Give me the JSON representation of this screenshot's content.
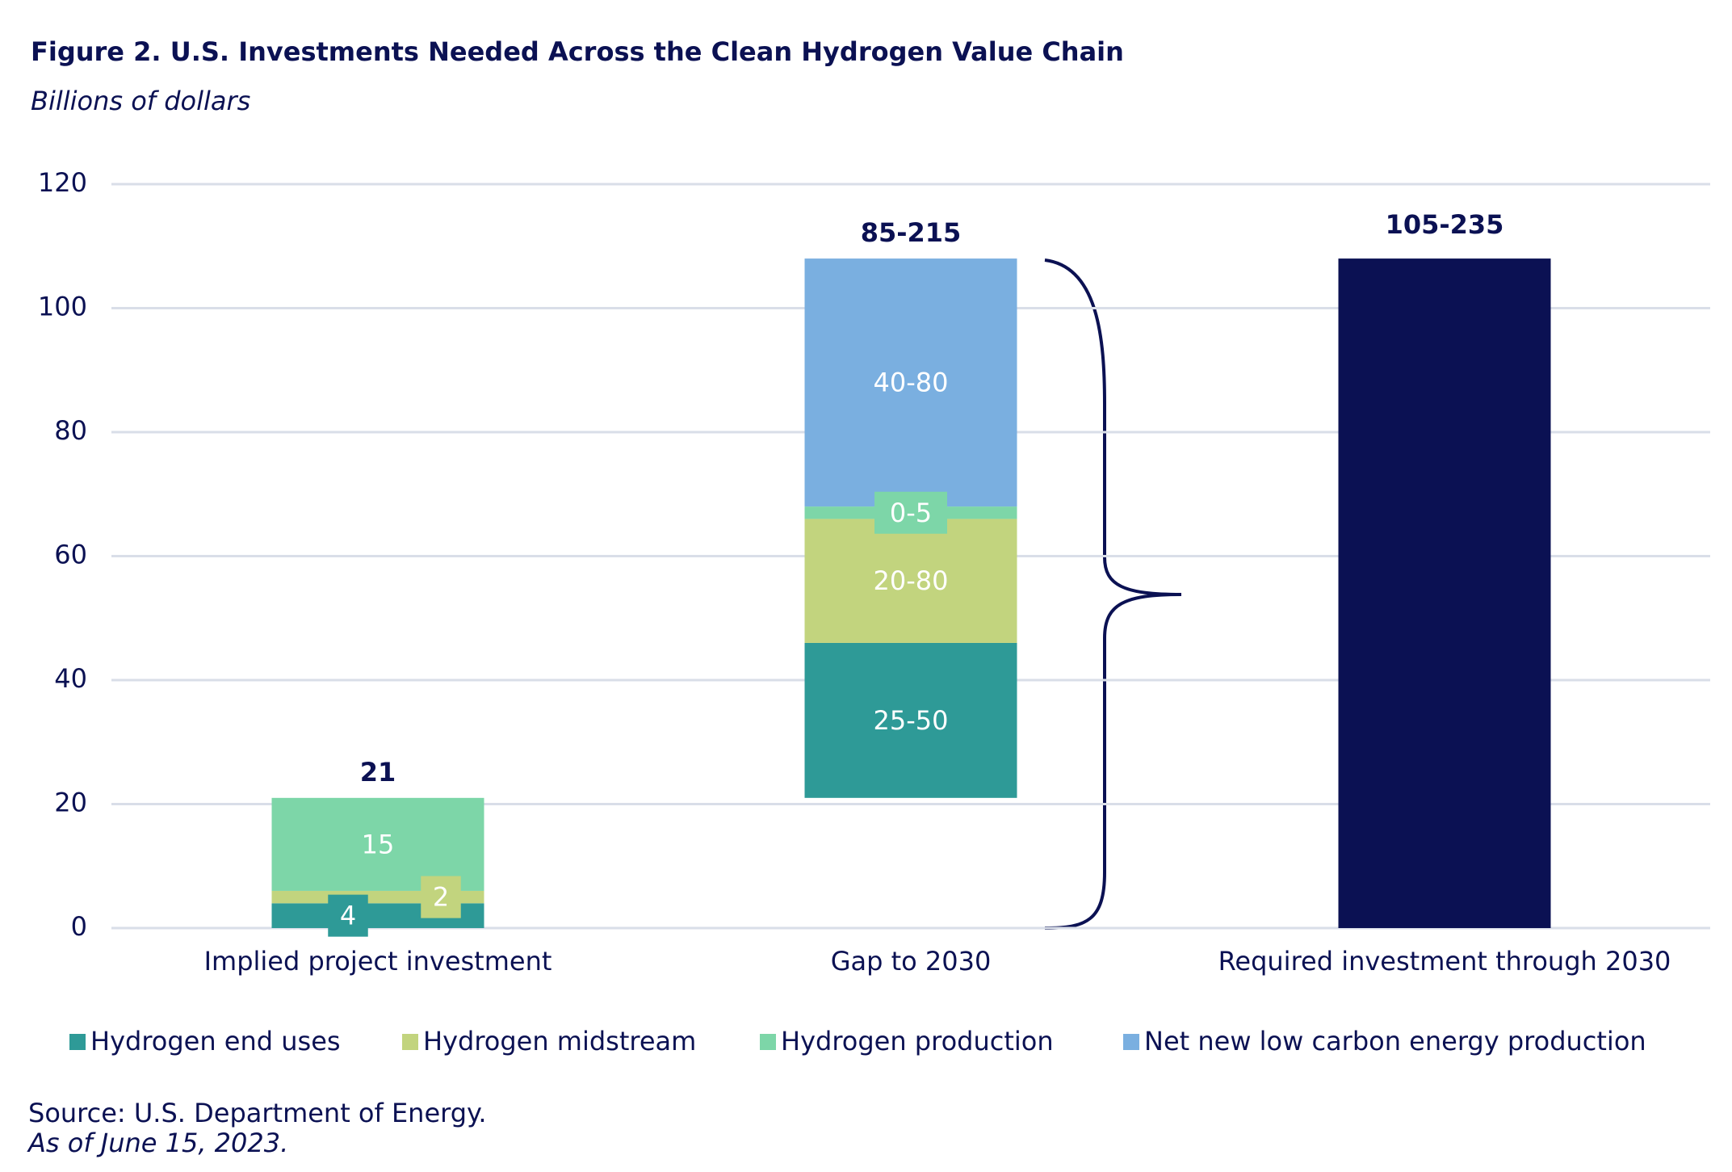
{
  "chart_data": {
    "type": "waterfall",
    "title": "Figure 2. U.S. Investments Needed Across the Clean Hydrogen Value Chain",
    "subtitle": "Billions of dollars",
    "categories": [
      "Implied project investment",
      "Gap to 2030",
      "Required investment through 2030"
    ],
    "series": [
      {
        "name": "Hydrogen end uses",
        "color": "#2e9a97",
        "values": [
          4,
          25,
          null
        ],
        "value_labels": [
          "4",
          "25-50",
          null
        ]
      },
      {
        "name": "Hydrogen midstream",
        "color": "#c2d47e",
        "values": [
          2,
          20,
          null
        ],
        "value_labels": [
          "2",
          "20-80",
          null
        ]
      },
      {
        "name": "Hydrogen production",
        "color": "#7dd6a8",
        "values": [
          15,
          2,
          null
        ],
        "value_labels": [
          "15",
          "0-5",
          null
        ]
      },
      {
        "name": "Net new low carbon energy production",
        "color": "#7aafe0",
        "values": [
          null,
          40,
          null
        ],
        "value_labels": [
          null,
          "40-80",
          null
        ]
      }
    ],
    "total_labels": [
      "21",
      "85-215",
      "105-235"
    ],
    "total_color": "#0b1153",
    "ylim": [
      0,
      120
    ],
    "yticks": [
      0,
      20,
      40,
      60,
      80,
      100,
      120
    ],
    "grid": true,
    "source": "Source: U.S. Department of Energy.",
    "note": "As of June 15, 2023."
  }
}
